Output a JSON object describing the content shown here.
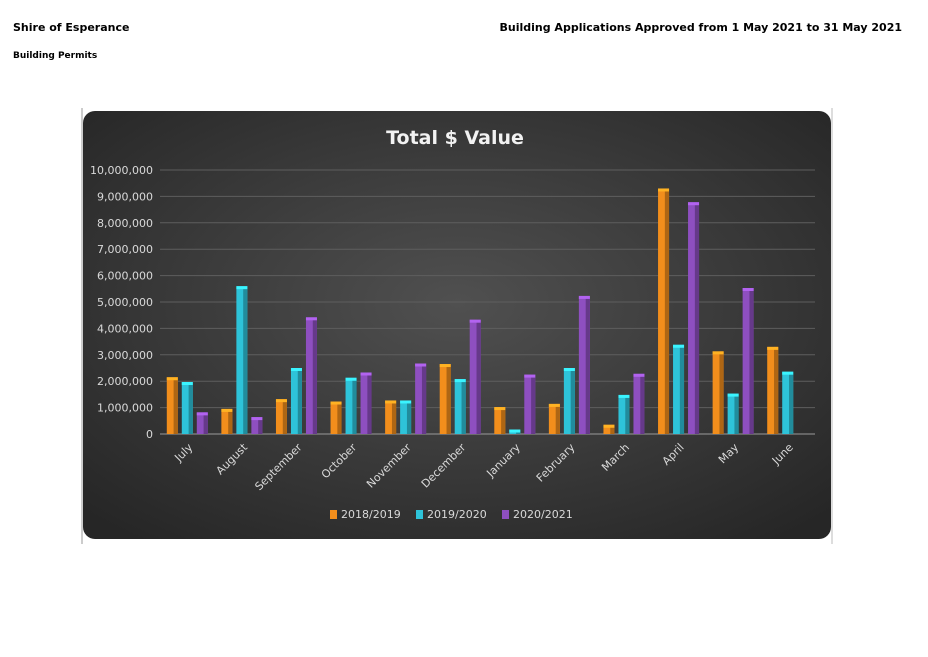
{
  "header": {
    "org_name": "Shire of Esperance",
    "report_title": "Building Applications Approved from 1 May 2021 to 31 May 2021",
    "section_title": "Building Permits"
  },
  "chart_data": {
    "type": "bar",
    "title": "Total $ Value",
    "xlabel": "",
    "ylabel": "",
    "ylim": [
      0,
      10000000
    ],
    "yticks": [
      0,
      1000000,
      2000000,
      3000000,
      4000000,
      5000000,
      6000000,
      7000000,
      8000000,
      9000000,
      10000000
    ],
    "ytick_labels": [
      "0",
      "1,000,000",
      "2,000,000",
      "3,000,000",
      "4,000,000",
      "5,000,000",
      "6,000,000",
      "7,000,000",
      "8,000,000",
      "9,000,000",
      "10,000,000"
    ],
    "categories": [
      "July",
      "August",
      "September",
      "October",
      "November",
      "December",
      "January",
      "February",
      "March",
      "April",
      "May",
      "June"
    ],
    "series": [
      {
        "name": "2018/2019",
        "color": "#f28e1c",
        "values": [
          2150000,
          950000,
          1320000,
          1230000,
          1270000,
          2650000,
          1020000,
          1140000,
          350000,
          9300000,
          3130000,
          3300000
        ]
      },
      {
        "name": "2019/2020",
        "color": "#2ec3d9",
        "values": [
          1970000,
          5600000,
          2500000,
          2130000,
          1270000,
          2080000,
          170000,
          2500000,
          1480000,
          3380000,
          1530000,
          2360000
        ]
      },
      {
        "name": "2020/2021",
        "color": "#8e4fc0",
        "values": [
          820000,
          640000,
          4420000,
          2330000,
          2670000,
          4330000,
          2250000,
          5230000,
          2280000,
          8780000,
          5530000,
          null
        ]
      }
    ],
    "grid": true,
    "legend_position": "bottom",
    "background": "#3a3a3a"
  }
}
